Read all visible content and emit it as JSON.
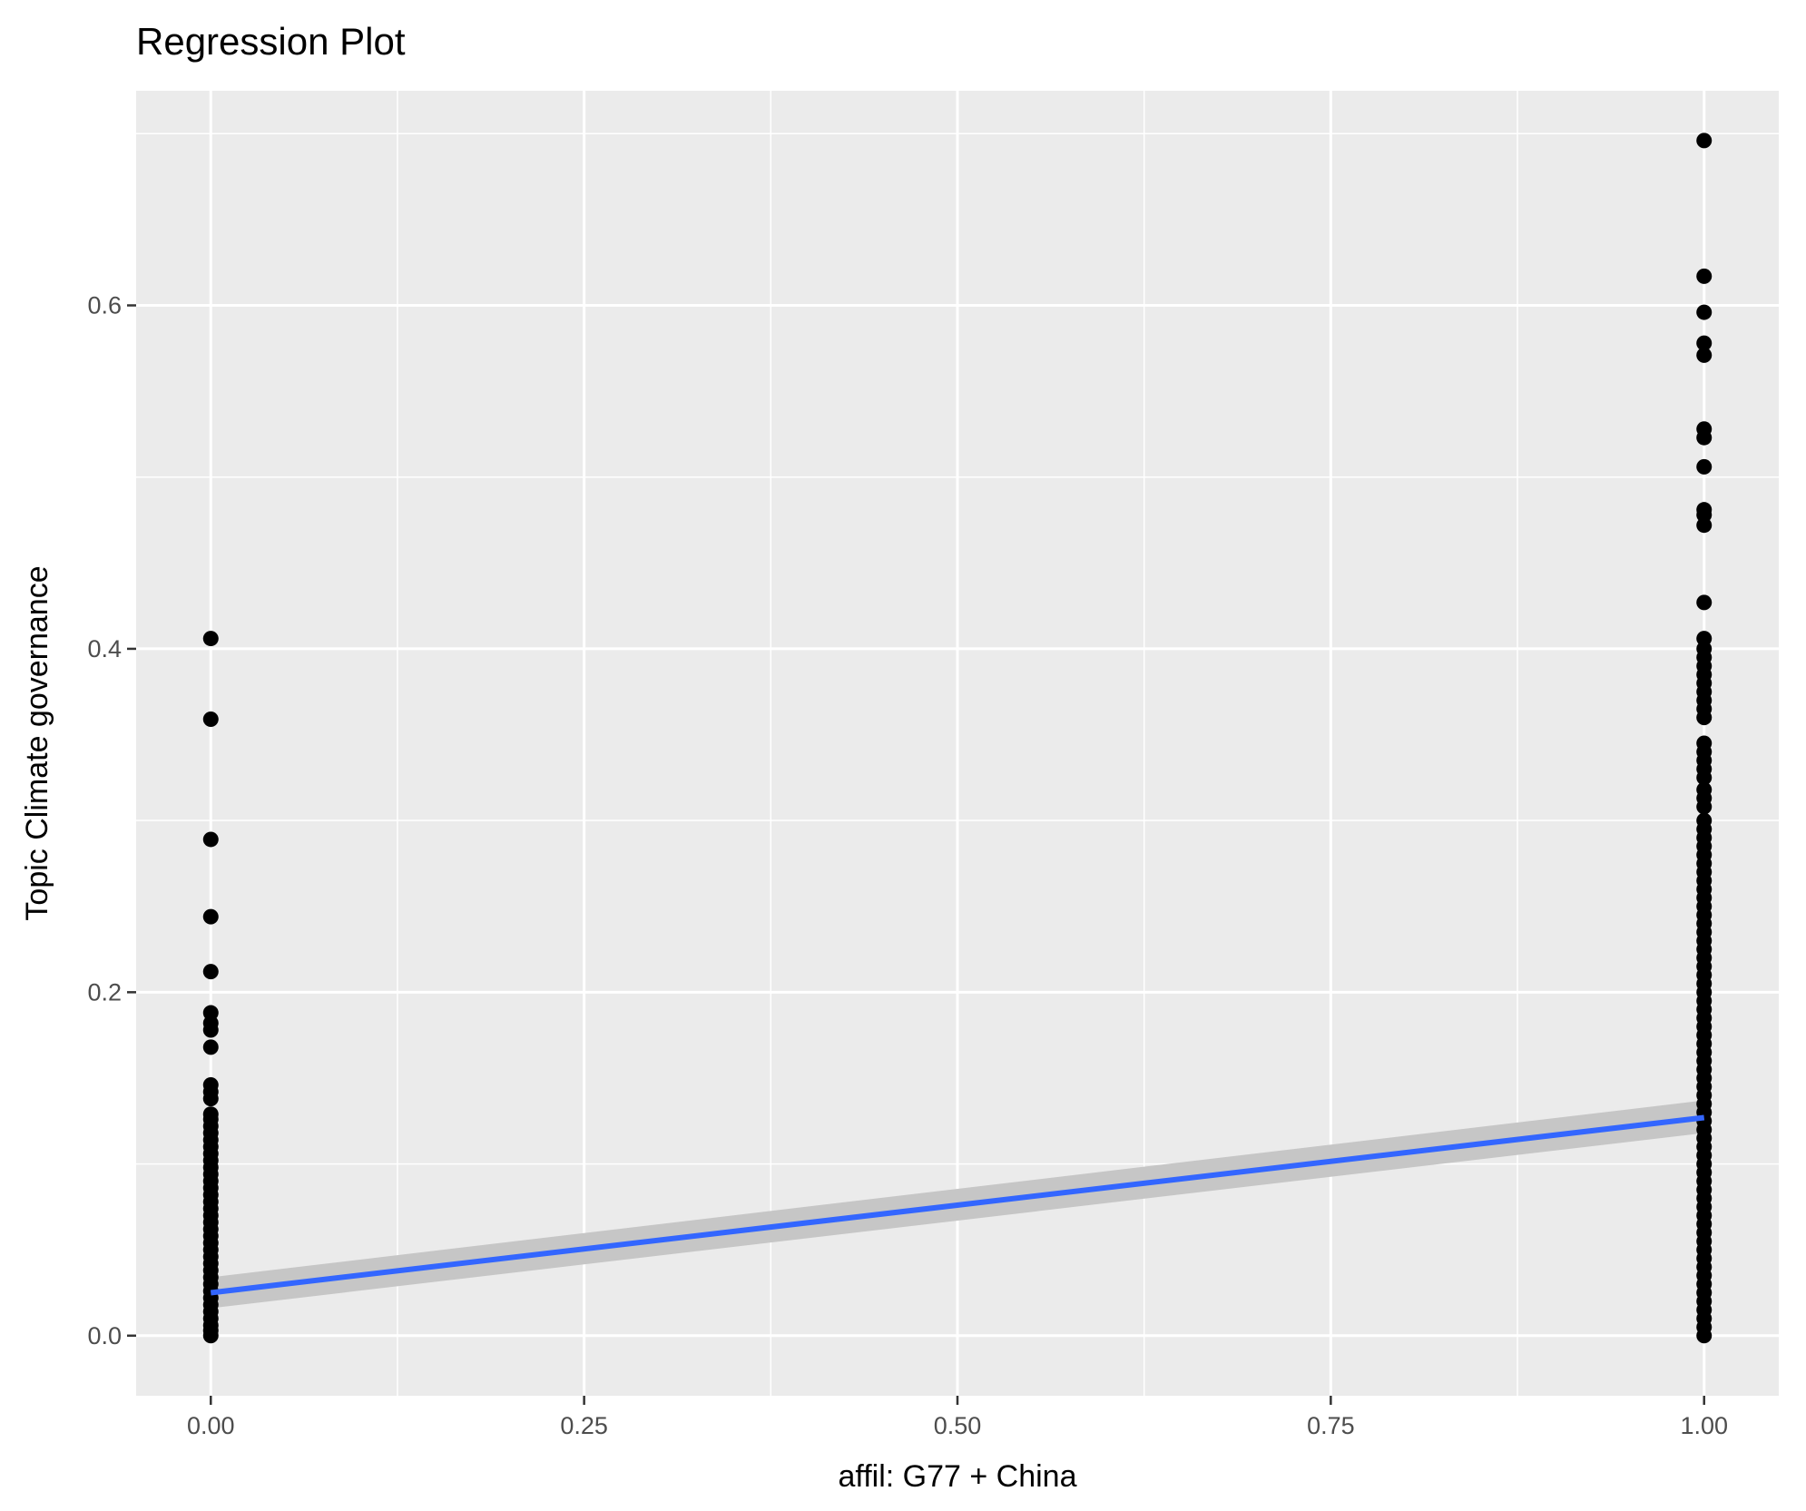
{
  "chart_data": {
    "type": "scatter",
    "title": "Regression Plot",
    "xlabel": "affil: G77 + China",
    "ylabel": "Topic Climate governance",
    "xlim": [
      -0.05,
      1.05
    ],
    "ylim": [
      -0.035,
      0.725
    ],
    "x_ticks": [
      0.0,
      0.25,
      0.5,
      0.75,
      1.0
    ],
    "x_tick_labels": [
      "0.00",
      "0.25",
      "0.50",
      "0.75",
      "1.00"
    ],
    "y_ticks": [
      0.0,
      0.2,
      0.4,
      0.6
    ],
    "y_tick_labels": [
      "0.0",
      "0.2",
      "0.4",
      "0.6"
    ],
    "grid": true,
    "background": "#ebebeb",
    "point_color": "#000000",
    "line_color": "#3366ff",
    "band_color": "#c6c6c6",
    "series": [
      {
        "x": 0,
        "values": [
          0.406,
          0.359,
          0.289,
          0.244,
          0.212,
          0.188,
          0.182,
          0.178,
          0.168,
          0.146,
          0.142,
          0.138,
          0.129,
          0.126,
          0.122,
          0.118,
          0.114,
          0.11,
          0.106,
          0.102,
          0.098,
          0.094,
          0.09,
          0.086,
          0.082,
          0.078,
          0.074,
          0.07,
          0.066,
          0.062,
          0.058,
          0.054,
          0.05,
          0.046,
          0.042,
          0.038,
          0.034,
          0.03,
          0.026,
          0.022,
          0.018,
          0.014,
          0.01,
          0.006,
          0.003,
          0.0
        ]
      },
      {
        "x": 1,
        "values": [
          0.696,
          0.617,
          0.596,
          0.578,
          0.571,
          0.528,
          0.523,
          0.506,
          0.481,
          0.478,
          0.472,
          0.427,
          0.406,
          0.4,
          0.395,
          0.39,
          0.385,
          0.38,
          0.375,
          0.37,
          0.365,
          0.36,
          0.345,
          0.34,
          0.335,
          0.33,
          0.325,
          0.318,
          0.313,
          0.308,
          0.3,
          0.295,
          0.29,
          0.285,
          0.28,
          0.275,
          0.27,
          0.265,
          0.26,
          0.255,
          0.25,
          0.245,
          0.24,
          0.235,
          0.23,
          0.225,
          0.22,
          0.215,
          0.21,
          0.205,
          0.2,
          0.195,
          0.19,
          0.185,
          0.18,
          0.175,
          0.17,
          0.165,
          0.16,
          0.155,
          0.15,
          0.145,
          0.14,
          0.135,
          0.13,
          0.125,
          0.12,
          0.115,
          0.11,
          0.105,
          0.1,
          0.095,
          0.09,
          0.085,
          0.08,
          0.075,
          0.07,
          0.065,
          0.06,
          0.055,
          0.05,
          0.045,
          0.04,
          0.035,
          0.03,
          0.025,
          0.02,
          0.015,
          0.01,
          0.005,
          0.0
        ]
      }
    ],
    "regression": {
      "x": [
        0,
        1
      ],
      "y": [
        0.025,
        0.127
      ],
      "ci_low": [
        0.016,
        0.118
      ],
      "ci_high": [
        0.034,
        0.137
      ]
    }
  }
}
